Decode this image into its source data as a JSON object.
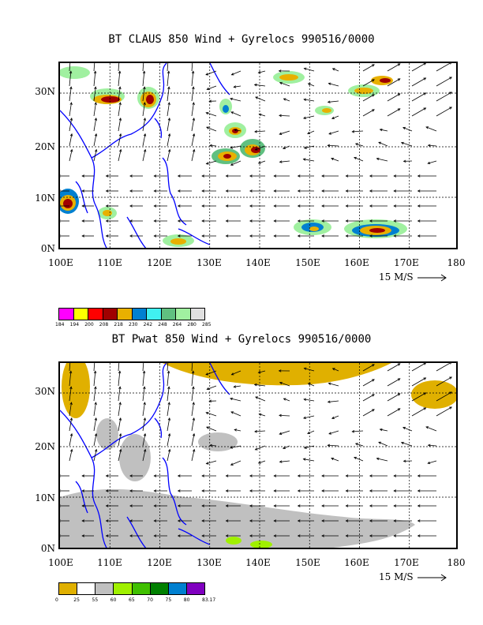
{
  "maps": [
    {
      "title": "BT CLAUS 850 Wind + Gyrelocs 990516/0000",
      "y_ticks": [
        "0N",
        "10N",
        "20N",
        "30N"
      ],
      "x_ticks": [
        "100E",
        "110E",
        "120E",
        "130E",
        "140E",
        "150E",
        "160E",
        "170E",
        "180"
      ],
      "vector_scale": "15 M/S",
      "colorbar": {
        "colors": [
          "#ff00ff",
          "#ffff00",
          "#ff0000",
          "#a00000",
          "#e8b000",
          "#0080d0",
          "#40f0f0",
          "#60c080",
          "#a0f0a0",
          "#e0e0e0"
        ],
        "labels": [
          "184",
          "194",
          "200",
          "208",
          "218",
          "230",
          "242",
          "248",
          "264",
          "280",
          "285"
        ]
      }
    },
    {
      "title": "BT Pwat 850 Wind + Gyrelocs 990516/0000",
      "y_ticks": [
        "0N",
        "10N",
        "20N",
        "30N"
      ],
      "x_ticks": [
        "100E",
        "110E",
        "120E",
        "130E",
        "140E",
        "150E",
        "160E",
        "170E",
        "180"
      ],
      "vector_scale": "15 M/S",
      "colorbar": {
        "colors": [
          "#e0b000",
          "#ffffff",
          "#c0c0c0",
          "#a0f000",
          "#40c000",
          "#008000",
          "#0080d0",
          "#8000c0"
        ],
        "labels": [
          "0",
          "25",
          "55",
          "60",
          "65",
          "70",
          "75",
          "80",
          "83.17"
        ]
      }
    }
  ]
}
